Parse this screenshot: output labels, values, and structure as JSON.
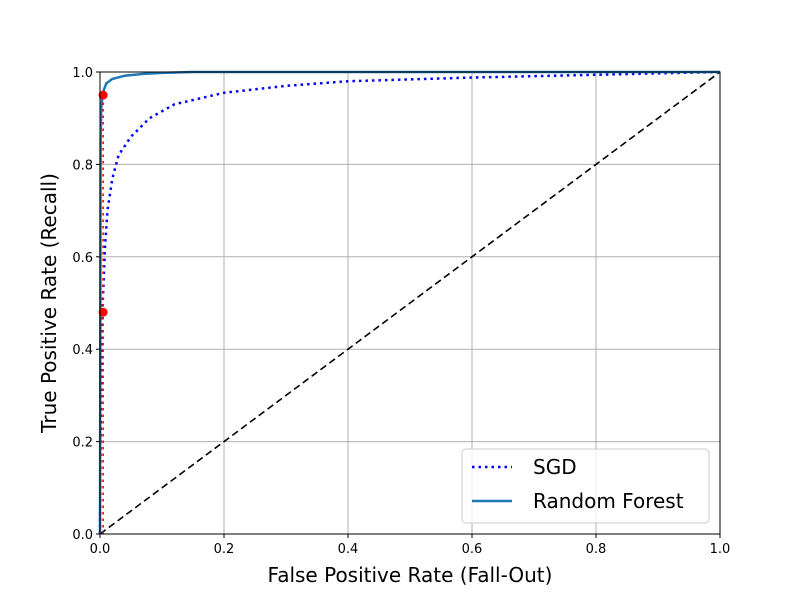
{
  "chart_data": {
    "type": "line",
    "title": "",
    "xlabel": "False Positive Rate (Fall-Out)",
    "ylabel": "True Positive Rate (Recall)",
    "xlim": [
      0,
      1
    ],
    "ylim": [
      0,
      1
    ],
    "xticks": [
      "0.0",
      "0.2",
      "0.4",
      "0.6",
      "0.8",
      "1.0"
    ],
    "yticks": [
      "0.0",
      "0.2",
      "0.4",
      "0.6",
      "0.8",
      "1.0"
    ],
    "grid": true,
    "legend_position": "lower-right",
    "series": [
      {
        "name": "SGD",
        "color": "#0000ff",
        "style": "dotted",
        "x": [
          0,
          0.001,
          0.002,
          0.003,
          0.005,
          0.008,
          0.012,
          0.02,
          0.03,
          0.05,
          0.08,
          0.12,
          0.2,
          0.3,
          0.4,
          0.6,
          0.8,
          1.0
        ],
        "y": [
          0,
          0.2,
          0.35,
          0.45,
          0.52,
          0.62,
          0.7,
          0.77,
          0.82,
          0.86,
          0.9,
          0.93,
          0.955,
          0.97,
          0.98,
          0.988,
          0.994,
          1.0
        ]
      },
      {
        "name": "Random Forest",
        "color": "#1f77b4",
        "style": "solid",
        "x": [
          0,
          0.001,
          0.002,
          0.004,
          0.006,
          0.01,
          0.02,
          0.04,
          0.07,
          0.1,
          0.15,
          0.3,
          1.0
        ],
        "y": [
          0,
          0.85,
          0.92,
          0.95,
          0.96,
          0.975,
          0.985,
          0.992,
          0.996,
          0.998,
          1.0,
          1.0,
          1.0
        ]
      },
      {
        "name": "",
        "color": "#000000",
        "style": "dashed",
        "x": [
          0,
          1
        ],
        "y": [
          0,
          1
        ]
      }
    ],
    "markers": [
      {
        "x": 0.005,
        "y": 0.48,
        "color": "#ff0000"
      },
      {
        "x": 0.005,
        "y": 0.95,
        "color": "#ff0000"
      }
    ],
    "reference_lines": [
      {
        "color": "#ff0000",
        "style": "dotted",
        "x": [
          0.005,
          0.005
        ],
        "y": [
          0,
          0.95
        ]
      },
      {
        "color": "#ff0000",
        "style": "dotted",
        "x": [
          0,
          0.005
        ],
        "y": [
          0.48,
          0.48
        ]
      },
      {
        "color": "#ff0000",
        "style": "dotted",
        "x": [
          0,
          0.005
        ],
        "y": [
          0.95,
          0.95
        ]
      }
    ]
  }
}
